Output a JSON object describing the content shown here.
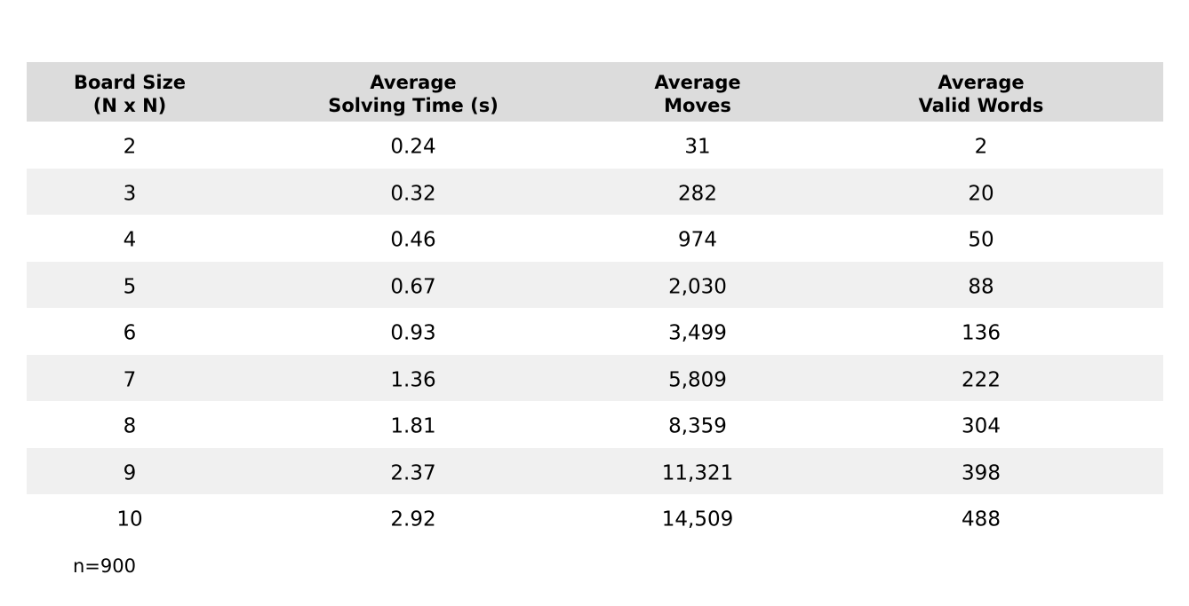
{
  "chart_data": {
    "type": "table",
    "columns": [
      [
        "Board Size",
        "(N x N)"
      ],
      [
        "Average",
        "Solving Time (s)"
      ],
      [
        "Average",
        "Moves"
      ],
      [
        "Average",
        "Valid Words"
      ]
    ],
    "rows": [
      [
        "2",
        "0.24",
        "31",
        "2"
      ],
      [
        "3",
        "0.32",
        "282",
        "20"
      ],
      [
        "4",
        "0.46",
        "974",
        "50"
      ],
      [
        "5",
        "0.67",
        "2,030",
        "88"
      ],
      [
        "6",
        "0.93",
        "3,499",
        "136"
      ],
      [
        "7",
        "1.36",
        "5,809",
        "222"
      ],
      [
        "8",
        "1.81",
        "8,359",
        "304"
      ],
      [
        "9",
        "2.37",
        "11,321",
        "398"
      ],
      [
        "10",
        "2.92",
        "14,509",
        "488"
      ]
    ],
    "note": "n=900",
    "colors": {
      "header_bg": "#dcdcdc",
      "stripe_bg": "#f0f0f0",
      "row_bg": "#ffffff",
      "text": "#000000"
    }
  }
}
